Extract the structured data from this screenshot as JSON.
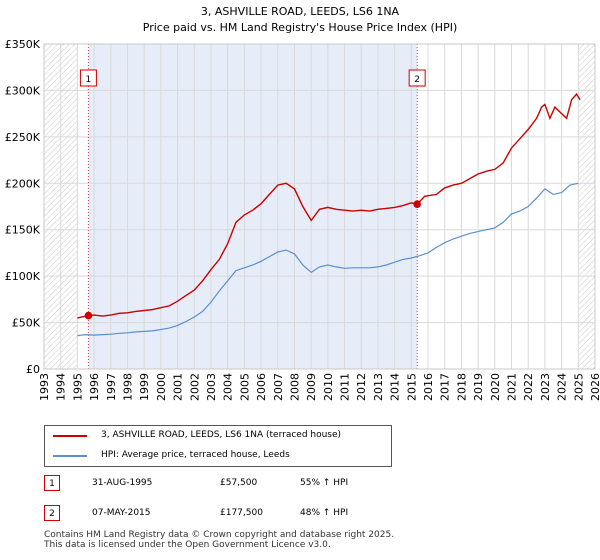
{
  "title_line1": "3, ASHVILLE ROAD, LEEDS, LS6 1NA",
  "title_line2": "Price paid vs. HM Land Registry's House Price Index (HPI)",
  "chart_data": {
    "type": "line",
    "title": "3, ASHVILLE ROAD, LEEDS, LS6 1NA",
    "subtitle": "Price paid vs. HM Land Registry's House Price Index (HPI)",
    "xlabel": "",
    "ylabel": "",
    "xlim": [
      1993,
      2026
    ],
    "ylim": [
      0,
      350000
    ],
    "x_ticks": [
      1993,
      1994,
      1995,
      1996,
      1997,
      1998,
      1999,
      2000,
      2001,
      2002,
      2003,
      2004,
      2005,
      2006,
      2007,
      2008,
      2009,
      2010,
      2011,
      2012,
      2013,
      2014,
      2015,
      2016,
      2017,
      2018,
      2019,
      2020,
      2021,
      2022,
      2023,
      2024,
      2025,
      2026
    ],
    "y_ticks": [
      {
        "value": 0,
        "label": "£0"
      },
      {
        "value": 50000,
        "label": "£50K"
      },
      {
        "value": 100000,
        "label": "£100K"
      },
      {
        "value": 150000,
        "label": "£150K"
      },
      {
        "value": 200000,
        "label": "£200K"
      },
      {
        "value": 250000,
        "label": "£250K"
      },
      {
        "value": 300000,
        "label": "£300K"
      },
      {
        "value": 350000,
        "label": "£350K"
      }
    ],
    "grid": true,
    "hatched_ranges": [
      [
        1993,
        1995.0
      ],
      [
        2025.0,
        2026
      ]
    ],
    "shaded_ranges": [
      [
        1995.66,
        2015.35
      ]
    ],
    "series": [
      {
        "name": "3, ASHVILLE ROAD, LEEDS, LS6 1NA (terraced house)",
        "color": "#cc0000",
        "x": [
          1995.0,
          1995.66,
          1996.0,
          1996.5,
          1997.0,
          1997.5,
          1998.0,
          1998.5,
          1999.0,
          1999.5,
          2000.0,
          2000.5,
          2001.0,
          2001.5,
          2002.0,
          2002.5,
          2003.0,
          2003.5,
          2004.0,
          2004.5,
          2005.0,
          2005.5,
          2006.0,
          2006.5,
          2007.0,
          2007.5,
          2008.0,
          2008.5,
          2009.0,
          2009.5,
          2010.0,
          2010.5,
          2011.0,
          2011.5,
          2012.0,
          2012.5,
          2013.0,
          2013.5,
          2014.0,
          2014.5,
          2015.0,
          2015.35,
          2015.8,
          2016.5,
          2017.0,
          2017.5,
          2018.0,
          2018.5,
          2019.0,
          2019.5,
          2020.0,
          2020.5,
          2021.0,
          2021.5,
          2022.0,
          2022.5,
          2022.8,
          2023.0,
          2023.3,
          2023.6,
          2024.0,
          2024.3,
          2024.6,
          2024.9,
          2025.1
        ],
        "y": [
          55000,
          57500,
          58000,
          57000,
          58000,
          60000,
          60500,
          62000,
          63000,
          64000,
          66000,
          68000,
          73000,
          79000,
          85000,
          95000,
          107000,
          118000,
          135000,
          158000,
          166000,
          171000,
          178000,
          188000,
          198000,
          200000,
          194000,
          175000,
          160000,
          172000,
          174000,
          172000,
          171000,
          170000,
          171000,
          170000,
          172000,
          173000,
          174000,
          176000,
          179000,
          177500,
          186000,
          188000,
          195000,
          198000,
          200000,
          205000,
          210000,
          213000,
          215000,
          222000,
          238000,
          248000,
          258000,
          270000,
          282000,
          285000,
          270000,
          282000,
          275000,
          270000,
          290000,
          296000,
          290000
        ]
      },
      {
        "name": "HPI: Average price, terraced house, Leeds",
        "color": "#5b8fd0",
        "x": [
          1995.0,
          1995.5,
          1996.0,
          1996.5,
          1997.0,
          1997.5,
          1998.0,
          1998.5,
          1999.0,
          1999.5,
          2000.0,
          2000.5,
          2001.0,
          2001.5,
          2002.0,
          2002.5,
          2003.0,
          2003.5,
          2004.0,
          2004.5,
          2005.0,
          2005.5,
          2006.0,
          2006.5,
          2007.0,
          2007.5,
          2008.0,
          2008.5,
          2009.0,
          2009.5,
          2010.0,
          2010.5,
          2011.0,
          2011.5,
          2012.0,
          2012.5,
          2013.0,
          2013.5,
          2014.0,
          2014.5,
          2015.0,
          2015.5,
          2016.0,
          2016.5,
          2017.0,
          2017.5,
          2018.0,
          2018.5,
          2019.0,
          2019.5,
          2020.0,
          2020.5,
          2021.0,
          2021.5,
          2022.0,
          2022.5,
          2023.0,
          2023.5,
          2024.0,
          2024.5,
          2025.0
        ],
        "y": [
          36000,
          37000,
          36500,
          37000,
          37500,
          38500,
          39000,
          40000,
          40500,
          41000,
          42500,
          44000,
          47000,
          51000,
          56000,
          62000,
          72000,
          84000,
          95000,
          106000,
          109000,
          112000,
          116000,
          121000,
          126000,
          128000,
          124000,
          112000,
          104000,
          110000,
          112000,
          110000,
          108500,
          109000,
          109000,
          109000,
          110000,
          112000,
          115000,
          118000,
          119500,
          122000,
          125000,
          131000,
          136000,
          140000,
          143000,
          146000,
          148000,
          150000,
          152000,
          158000,
          167000,
          170000,
          175000,
          184000,
          194000,
          188000,
          190000,
          198000,
          200000
        ]
      }
    ],
    "annotations": [
      {
        "label": "1",
        "x": 1995.66,
        "y": 57500
      },
      {
        "label": "2",
        "x": 2015.35,
        "y": 177500
      }
    ]
  },
  "legend": {
    "property_label": "3, ASHVILLE ROAD, LEEDS, LS6 1NA (terraced house)",
    "hpi_label": "HPI: Average price, terraced house, Leeds",
    "property_color": "#cc0000",
    "hpi_color": "#5b8fd0"
  },
  "sales": [
    {
      "num": "1",
      "date": "31-AUG-1995",
      "price": "£57,500",
      "hpi": "55% ↑ HPI"
    },
    {
      "num": "2",
      "date": "07-MAY-2015",
      "price": "£177,500",
      "hpi": "48% ↑ HPI"
    }
  ],
  "footer": {
    "line1": "Contains HM Land Registry data © Crown copyright and database right 2025.",
    "line2": "This data is licensed under the Open Government Licence v3.0."
  }
}
